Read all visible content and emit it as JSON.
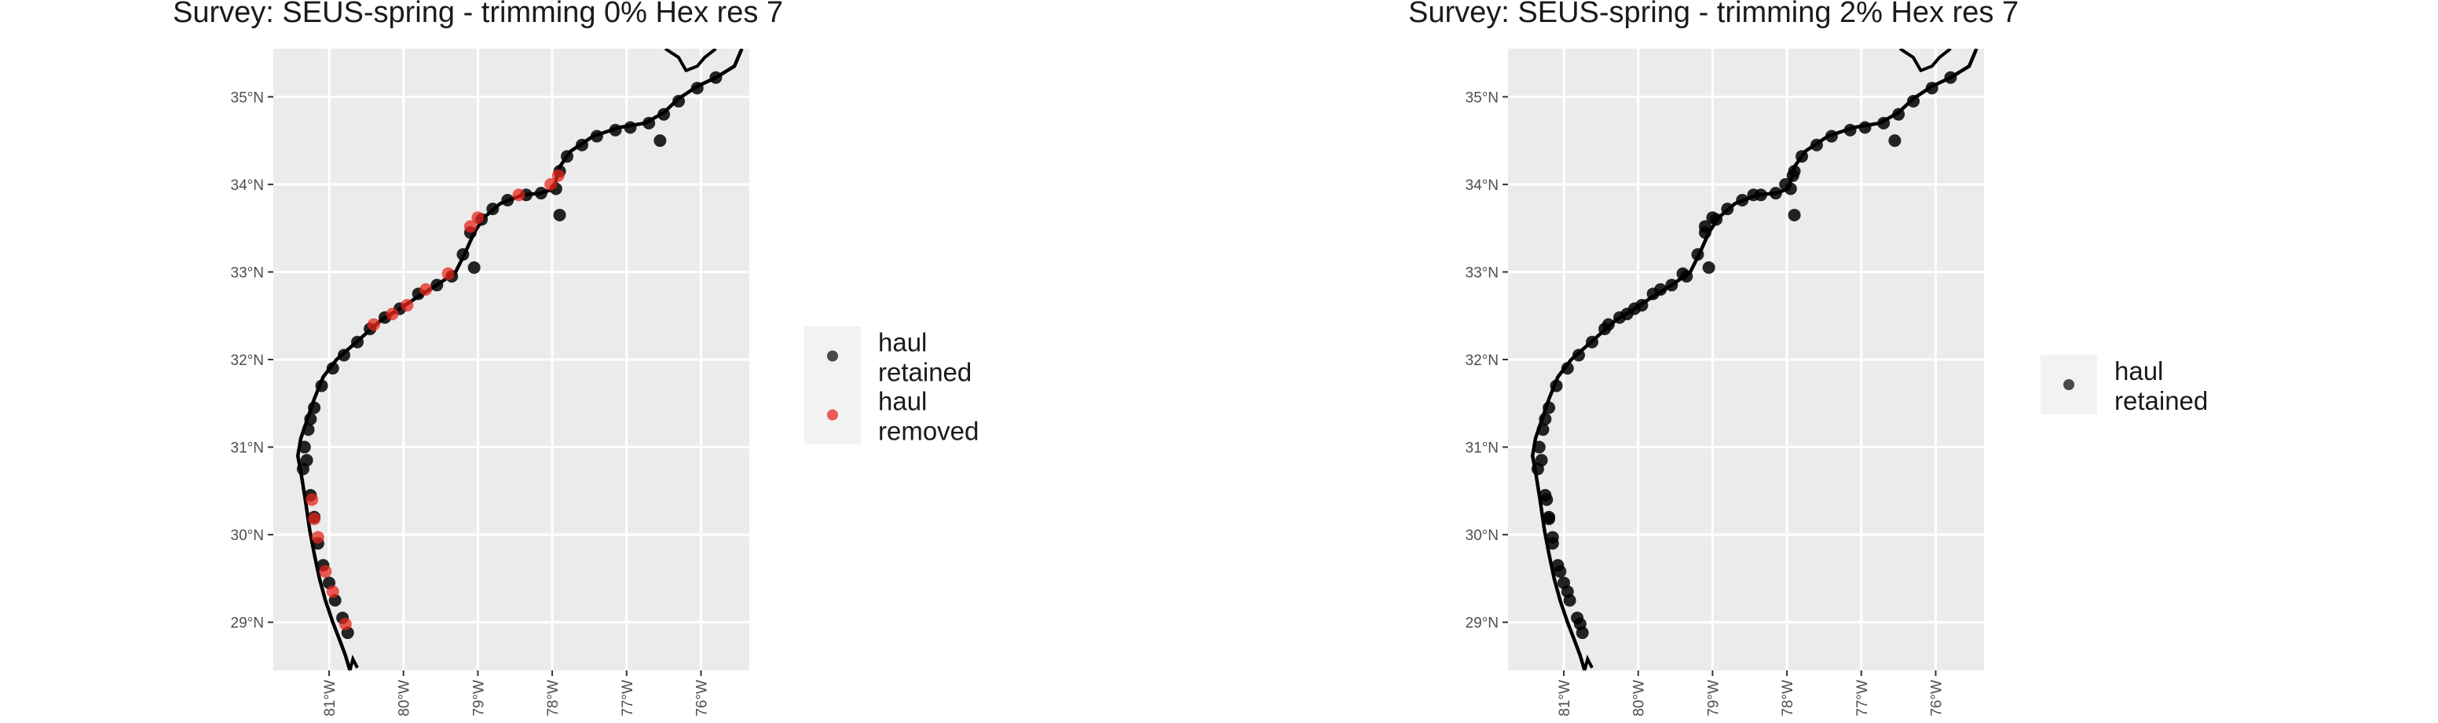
{
  "chart_data": [
    {
      "type": "scatter",
      "title": "Survey: SEUS-spring - trimming 0% Hex res 7",
      "xlabel": "",
      "ylabel": "",
      "x_range": [
        -81.75,
        -75.35
      ],
      "y_range": [
        28.45,
        35.55
      ],
      "x_ticks": [
        -81,
        -80,
        -79,
        -78,
        -77,
        -76
      ],
      "x_tick_labels": [
        "81°W",
        "80°W",
        "79°W",
        "78°W",
        "77°W",
        "76°W"
      ],
      "y_ticks": [
        29,
        30,
        31,
        32,
        33,
        34,
        35
      ],
      "y_tick_labels": [
        "29°N",
        "30°N",
        "31°N",
        "32°N",
        "33°N",
        "34°N",
        "35°N"
      ],
      "grid": true,
      "legend_position": "right",
      "series": [
        {
          "name": "haul retained",
          "legend_lines": [
            "haul",
            "retained"
          ],
          "color": "#000000",
          "points": [
            [
              -81.3,
              30.85
            ],
            [
              -81.33,
              31.0
            ],
            [
              -81.28,
              31.2
            ],
            [
              -81.2,
              31.45
            ],
            [
              -81.1,
              31.7
            ],
            [
              -80.95,
              31.9
            ],
            [
              -80.8,
              32.05
            ],
            [
              -80.62,
              32.2
            ],
            [
              -80.45,
              32.35
            ],
            [
              -80.25,
              32.48
            ],
            [
              -80.05,
              32.58
            ],
            [
              -79.8,
              32.75
            ],
            [
              -79.55,
              32.85
            ],
            [
              -79.35,
              32.95
            ],
            [
              -79.2,
              33.2
            ],
            [
              -79.1,
              33.45
            ],
            [
              -78.95,
              33.6
            ],
            [
              -78.8,
              33.72
            ],
            [
              -78.6,
              33.82
            ],
            [
              -78.35,
              33.88
            ],
            [
              -78.15,
              33.9
            ],
            [
              -77.95,
              33.95
            ],
            [
              -77.9,
              34.15
            ],
            [
              -77.8,
              34.32
            ],
            [
              -77.6,
              34.45
            ],
            [
              -77.4,
              34.55
            ],
            [
              -77.15,
              34.62
            ],
            [
              -76.95,
              34.65
            ],
            [
              -76.7,
              34.7
            ],
            [
              -76.5,
              34.8
            ],
            [
              -76.3,
              34.95
            ],
            [
              -76.05,
              35.1
            ],
            [
              -75.8,
              35.22
            ],
            [
              -81.25,
              30.45
            ],
            [
              -81.2,
              30.2
            ],
            [
              -81.15,
              29.9
            ],
            [
              -81.08,
              29.65
            ],
            [
              -81.0,
              29.45
            ],
            [
              -80.92,
              29.25
            ],
            [
              -80.82,
              29.05
            ],
            [
              -80.75,
              28.88
            ],
            [
              -77.9,
              33.65
            ],
            [
              -76.55,
              34.5
            ],
            [
              -79.05,
              33.05
            ],
            [
              -81.35,
              30.75
            ],
            [
              -81.25,
              31.32
            ]
          ]
        },
        {
          "name": "haul removed",
          "legend_lines": [
            "haul",
            "removed"
          ],
          "color": "#e8261e",
          "points": [
            [
              -81.15,
              29.97
            ],
            [
              -81.2,
              30.18
            ],
            [
              -81.23,
              30.4
            ],
            [
              -81.05,
              29.58
            ],
            [
              -80.95,
              29.35
            ],
            [
              -80.78,
              28.98
            ],
            [
              -79.95,
              32.62
            ],
            [
              -80.15,
              32.52
            ],
            [
              -79.7,
              32.8
            ],
            [
              -79.4,
              32.98
            ],
            [
              -79.0,
              33.62
            ],
            [
              -79.1,
              33.52
            ],
            [
              -78.02,
              34.0
            ],
            [
              -77.92,
              34.1
            ],
            [
              -78.45,
              33.88
            ],
            [
              -80.4,
              32.4
            ]
          ]
        }
      ]
    },
    {
      "type": "scatter",
      "title": "Survey: SEUS-spring - trimming 2% Hex res 7",
      "xlabel": "",
      "ylabel": "",
      "x_range": [
        -81.75,
        -75.35
      ],
      "y_range": [
        28.45,
        35.55
      ],
      "x_ticks": [
        -81,
        -80,
        -79,
        -78,
        -77,
        -76
      ],
      "x_tick_labels": [
        "81°W",
        "80°W",
        "79°W",
        "78°W",
        "77°W",
        "76°W"
      ],
      "y_ticks": [
        29,
        30,
        31,
        32,
        33,
        34,
        35
      ],
      "y_tick_labels": [
        "29°N",
        "30°N",
        "31°N",
        "32°N",
        "33°N",
        "34°N",
        "35°N"
      ],
      "grid": true,
      "legend_position": "right",
      "series": [
        {
          "name": "haul retained",
          "legend_lines": [
            "haul",
            "retained"
          ],
          "color": "#000000",
          "points": [
            [
              -81.3,
              30.85
            ],
            [
              -81.33,
              31.0
            ],
            [
              -81.28,
              31.2
            ],
            [
              -81.2,
              31.45
            ],
            [
              -81.1,
              31.7
            ],
            [
              -80.95,
              31.9
            ],
            [
              -80.8,
              32.05
            ],
            [
              -80.62,
              32.2
            ],
            [
              -80.45,
              32.35
            ],
            [
              -80.25,
              32.48
            ],
            [
              -80.05,
              32.58
            ],
            [
              -79.8,
              32.75
            ],
            [
              -79.55,
              32.85
            ],
            [
              -79.35,
              32.95
            ],
            [
              -79.2,
              33.2
            ],
            [
              -79.1,
              33.45
            ],
            [
              -78.95,
              33.6
            ],
            [
              -78.8,
              33.72
            ],
            [
              -78.6,
              33.82
            ],
            [
              -78.35,
              33.88
            ],
            [
              -78.15,
              33.9
            ],
            [
              -77.95,
              33.95
            ],
            [
              -77.9,
              34.15
            ],
            [
              -77.8,
              34.32
            ],
            [
              -77.6,
              34.45
            ],
            [
              -77.4,
              34.55
            ],
            [
              -77.15,
              34.62
            ],
            [
              -76.95,
              34.65
            ],
            [
              -76.7,
              34.7
            ],
            [
              -76.5,
              34.8
            ],
            [
              -76.3,
              34.95
            ],
            [
              -76.05,
              35.1
            ],
            [
              -75.8,
              35.22
            ],
            [
              -81.25,
              30.45
            ],
            [
              -81.2,
              30.2
            ],
            [
              -81.15,
              29.9
            ],
            [
              -81.08,
              29.65
            ],
            [
              -81.0,
              29.45
            ],
            [
              -80.92,
              29.25
            ],
            [
              -80.82,
              29.05
            ],
            [
              -80.75,
              28.88
            ],
            [
              -77.9,
              33.65
            ],
            [
              -76.55,
              34.5
            ],
            [
              -79.05,
              33.05
            ],
            [
              -81.35,
              30.75
            ],
            [
              -81.25,
              31.32
            ],
            [
              -81.15,
              29.97
            ],
            [
              -81.2,
              30.18
            ],
            [
              -81.23,
              30.4
            ],
            [
              -81.05,
              29.58
            ],
            [
              -80.95,
              29.35
            ],
            [
              -80.78,
              28.98
            ],
            [
              -79.95,
              32.62
            ],
            [
              -80.15,
              32.52
            ],
            [
              -79.7,
              32.8
            ],
            [
              -79.4,
              32.98
            ],
            [
              -79.0,
              33.62
            ],
            [
              -79.1,
              33.52
            ],
            [
              -78.02,
              34.0
            ],
            [
              -77.92,
              34.1
            ],
            [
              -78.45,
              33.88
            ],
            [
              -80.4,
              32.4
            ]
          ]
        }
      ]
    }
  ]
}
